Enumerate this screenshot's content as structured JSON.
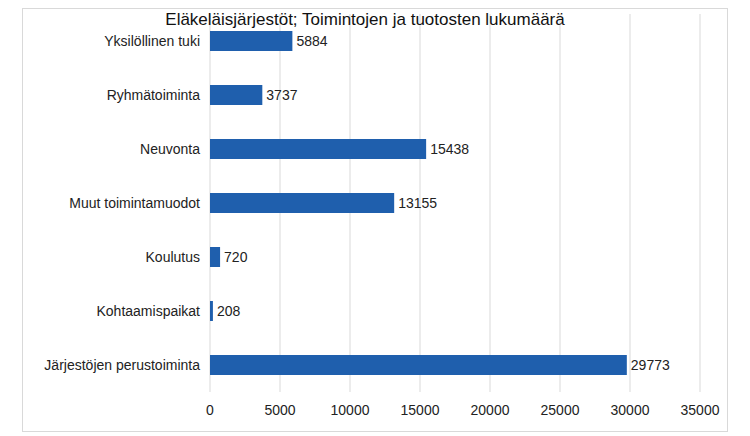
{
  "chart_data": {
    "type": "bar",
    "title": "Eläkeläisjärjestöt; Toimintojen ja tuotosten lukumäärä",
    "orientation": "horizontal",
    "categories": [
      "Yksilöllinen tuki",
      "Ryhmätoiminta",
      "Neuvonta",
      "Muut toimintamuodot",
      "Koulutus",
      "Kohtaamispaikat",
      "Järjestöjen perustoiminta"
    ],
    "values": [
      5884,
      3737,
      15438,
      13155,
      720,
      208,
      29773
    ],
    "color": "#1f5fad",
    "xlim": [
      0,
      35000
    ],
    "xticks": [
      0,
      5000,
      10000,
      15000,
      20000,
      25000,
      30000,
      35000
    ],
    "grid": true,
    "data_labels": true
  }
}
